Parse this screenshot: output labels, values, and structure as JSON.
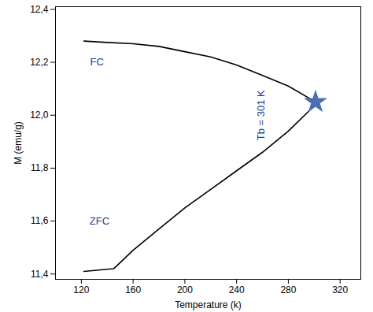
{
  "chart_data": {
    "type": "line",
    "xlabel": "Temperature (k)",
    "ylabel": "M (emu/g)",
    "xlim": [
      100,
      336
    ],
    "ylim": [
      11.38,
      12.41
    ],
    "xticks": [
      120,
      160,
      200,
      240,
      280,
      320
    ],
    "yticks": [
      {
        "value": 11.4,
        "label": "11,4"
      },
      {
        "value": 11.6,
        "label": "11,6"
      },
      {
        "value": 11.8,
        "label": "11,8"
      },
      {
        "value": 12.0,
        "label": "12,0"
      },
      {
        "value": 12.2,
        "label": "12,2"
      },
      {
        "value": 12.4,
        "label": "12,4"
      }
    ],
    "grid": false,
    "series": [
      {
        "color": "#000000",
        "x": [
          122,
          140,
          160,
          180,
          200,
          220,
          240,
          260,
          280,
          301
        ],
        "values": [
          12.28,
          12.275,
          12.27,
          12.26,
          12.24,
          12.22,
          12.19,
          12.15,
          12.11,
          12.05
        ]
      },
      {
        "color": "#000000",
        "x": [
          122,
          145,
          160,
          180,
          200,
          220,
          240,
          260,
          280,
          301
        ],
        "values": [
          11.41,
          11.42,
          11.49,
          11.57,
          11.65,
          11.72,
          11.79,
          11.86,
          11.94,
          12.04
        ]
      }
    ],
    "annotations": [
      {
        "text": "FC",
        "x": 132,
        "y": 12.2,
        "color": "#1c3f94"
      },
      {
        "text": "ZFC",
        "x": 134,
        "y": 11.6,
        "color": "#1c3f94"
      },
      {
        "text": "Tb = 301 K",
        "x": 259,
        "y": 12.0,
        "color": "#1c3f94",
        "orientation": "vertical"
      }
    ],
    "markers": [
      {
        "x": 301,
        "y": 12.05,
        "marker": "star",
        "color": "#4a6fb5"
      }
    ]
  }
}
